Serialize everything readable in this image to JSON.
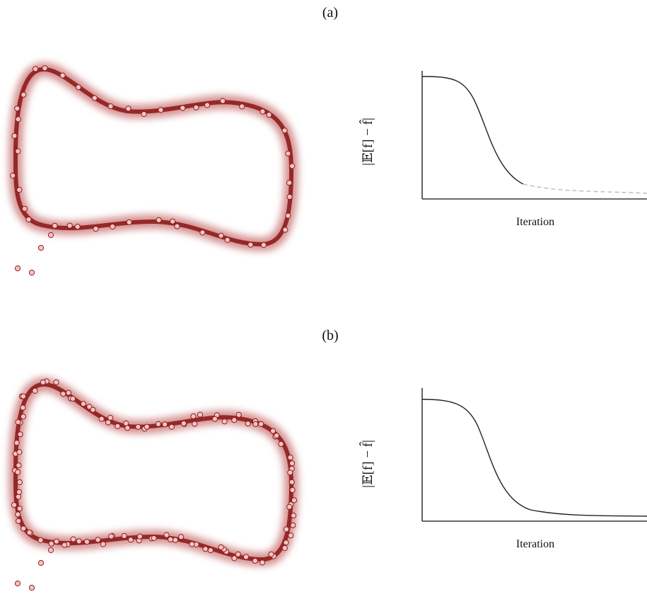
{
  "panels": [
    {
      "label": "(a)",
      "ylabel": "|𝔼[f] − f̂|",
      "xlabel": "Iteration"
    },
    {
      "label": "(b)",
      "ylabel": "|𝔼[f] − f̂|",
      "xlabel": "Iteration"
    }
  ]
}
